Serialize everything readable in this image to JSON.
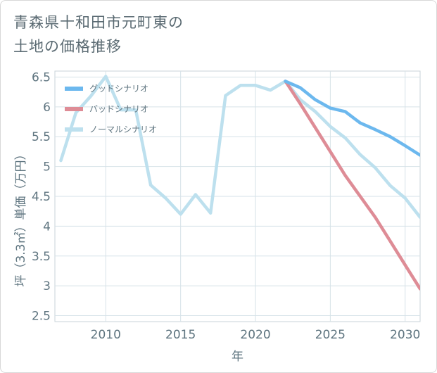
{
  "page": {
    "title_line1": "青森県十和田市元町東の",
    "title_line2": "土地の価格推移"
  },
  "chart_data": {
    "type": "line",
    "xlabel": "年",
    "ylabel": "坪（3.3㎡）単価（万円）",
    "xlim": [
      2006.6,
      2031
    ],
    "ylim": [
      2.4,
      6.6
    ],
    "x_ticks": [
      2010,
      2015,
      2020,
      2025,
      2030
    ],
    "y_ticks": [
      2.5,
      3,
      3.5,
      4,
      4.5,
      5,
      5.5,
      6,
      6.5
    ],
    "x_tick_labels": [
      "2010",
      "2015",
      "2020",
      "2025",
      "2030"
    ],
    "y_tick_labels": [
      "2.5",
      "3",
      "3.5",
      "4",
      "4.5",
      "5",
      "5.5",
      "6",
      "6.5"
    ],
    "grid": true,
    "legend_position": "top-left",
    "series": [
      {
        "name": "グッドシナリオ",
        "color": "#6cb8ee",
        "x": [
          2022,
          2023,
          2024,
          2025,
          2026,
          2027,
          2028,
          2029,
          2030,
          2031
        ],
        "y": [
          6.43,
          6.32,
          6.12,
          5.98,
          5.92,
          5.73,
          5.62,
          5.5,
          5.35,
          5.19
        ]
      },
      {
        "name": "バッドシナリオ",
        "color": "#de8c96",
        "x": [
          2022,
          2023,
          2024,
          2025,
          2026,
          2027,
          2028,
          2029,
          2030,
          2031
        ],
        "y": [
          6.43,
          6.05,
          5.65,
          5.25,
          4.85,
          4.5,
          4.15,
          3.75,
          3.35,
          2.95
        ]
      },
      {
        "name": "ノーマルシナリオ",
        "color": "#bde0ee",
        "x": [
          2007,
          2008,
          2009,
          2010,
          2011,
          2012,
          2013,
          2014,
          2015,
          2016,
          2017,
          2018,
          2019,
          2020,
          2021,
          2022,
          2023,
          2024,
          2025,
          2026,
          2027,
          2028,
          2029,
          2030,
          2031
        ],
        "y": [
          5.1,
          5.9,
          6.18,
          6.51,
          5.95,
          5.95,
          4.69,
          4.47,
          4.2,
          4.53,
          4.22,
          6.19,
          6.36,
          6.36,
          6.28,
          6.43,
          6.12,
          5.92,
          5.67,
          5.48,
          5.2,
          4.98,
          4.68,
          4.47,
          4.15
        ]
      }
    ]
  }
}
